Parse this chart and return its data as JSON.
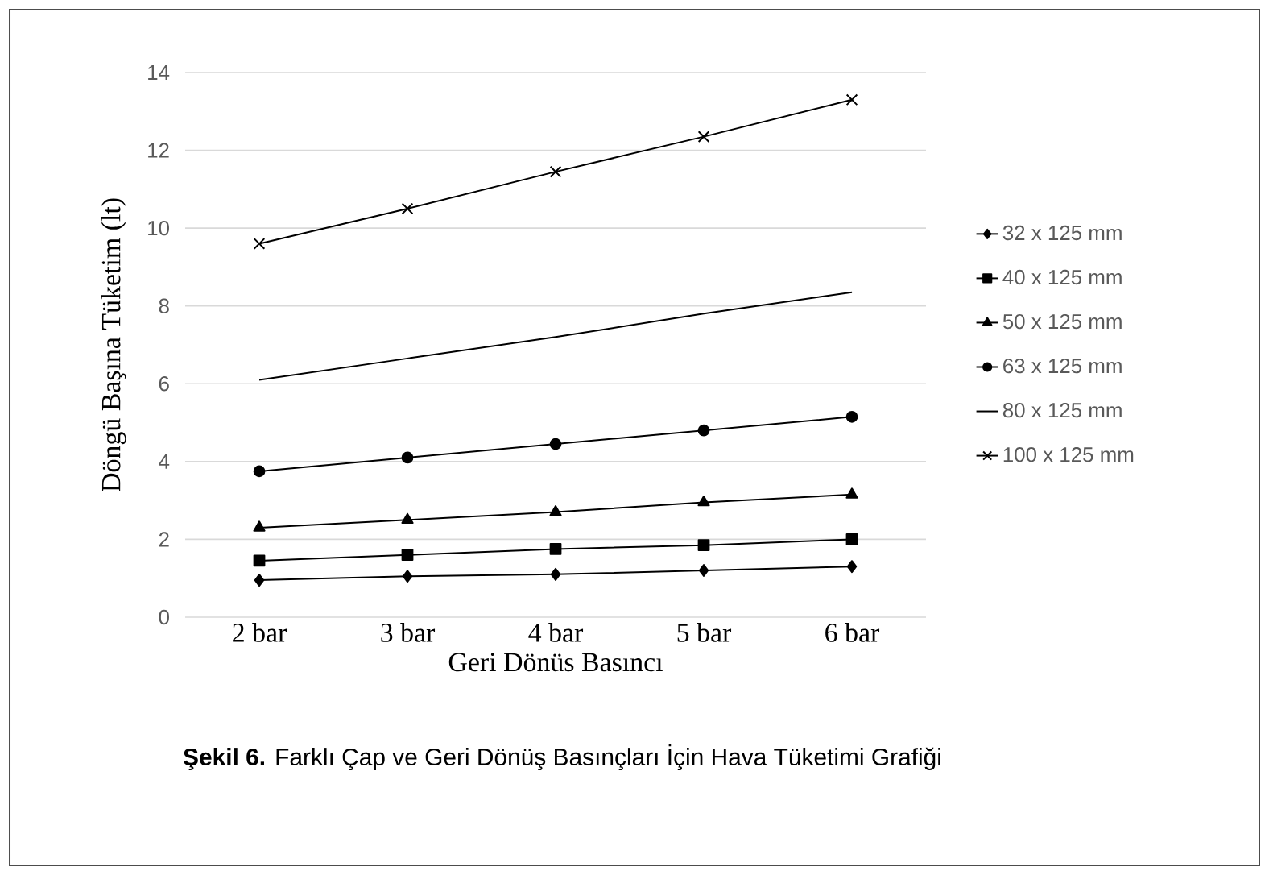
{
  "chart_data": {
    "type": "line",
    "categories": [
      "2 bar",
      "3 bar",
      "4 bar",
      "5 bar",
      "6 bar"
    ],
    "xlabel": "Geri Dönüs Basıncı",
    "ylabel": "Döngü Başına Tüketim (lt)",
    "ylim": [
      0,
      14
    ],
    "yticks": [
      0,
      2,
      4,
      6,
      8,
      10,
      12,
      14
    ],
    "grid": "y",
    "legend": "right",
    "series": [
      {
        "name": "32 x 125 mm",
        "color": "#000000",
        "marker": "diamond",
        "values": [
          0.95,
          1.05,
          1.1,
          1.2,
          1.3
        ]
      },
      {
        "name": "40 x 125 mm",
        "color": "#000000",
        "marker": "square",
        "values": [
          1.45,
          1.6,
          1.75,
          1.85,
          2.0
        ]
      },
      {
        "name": "50 x 125 mm",
        "color": "#000000",
        "marker": "triangle",
        "values": [
          2.3,
          2.5,
          2.7,
          2.95,
          3.15
        ]
      },
      {
        "name": "63 x 125 mm",
        "color": "#000000",
        "marker": "circle",
        "values": [
          3.75,
          4.1,
          4.45,
          4.8,
          5.15
        ]
      },
      {
        "name": "80 x 125 mm",
        "color": "#000000",
        "marker": "none",
        "values": [
          6.1,
          6.65,
          7.2,
          7.8,
          8.35
        ]
      },
      {
        "name": "100 x 125 mm",
        "color": "#000000",
        "marker": "cross",
        "values": [
          9.6,
          10.5,
          11.45,
          12.35,
          13.3
        ]
      }
    ],
    "annotations": [
      "**Şekil 6.** Farklı Çap ve Geri Dönüş Basınçları İçin Hava Tüketimi Grafiği"
    ]
  }
}
